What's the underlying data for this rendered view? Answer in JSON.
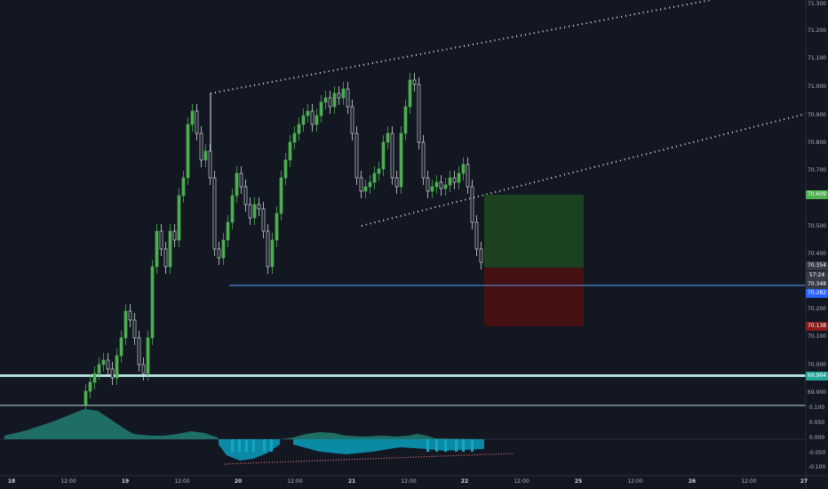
{
  "price_axis": {
    "labels": [
      "71.300",
      "71.200",
      "71.100",
      "71.000",
      "70.900",
      "70.800",
      "70.700",
      "70.500",
      "70.400",
      "70.200",
      "70.100",
      "70.000",
      "69.900"
    ],
    "badges": [
      {
        "text": "70.609",
        "color": "#4caf50"
      },
      {
        "text": "70.354",
        "color": "#363a45"
      },
      {
        "text": "57:24",
        "color": "#363a45"
      },
      {
        "text": "70.348",
        "color": "#363a45"
      },
      {
        "text": "70.282",
        "color": "#2962ff"
      },
      {
        "text": "70.138",
        "color": "#8b1a1a"
      },
      {
        "text": "69.964",
        "color": "#26a69a"
      }
    ]
  },
  "indicator_axis": {
    "labels": [
      "0.100",
      "0.050",
      "0.000",
      "-0.050",
      "-0.100"
    ]
  },
  "time_axis": {
    "labels": [
      {
        "text": "18",
        "bold": true
      },
      {
        "text": "12:00",
        "bold": false
      },
      {
        "text": "19",
        "bold": true
      },
      {
        "text": "12:00",
        "bold": false
      },
      {
        "text": "20",
        "bold": true
      },
      {
        "text": "12:00",
        "bold": false
      },
      {
        "text": "21",
        "bold": true
      },
      {
        "text": "12:00",
        "bold": false
      },
      {
        "text": "22",
        "bold": true
      },
      {
        "text": "12:00",
        "bold": false
      },
      {
        "text": "25",
        "bold": true
      },
      {
        "text": "12:00",
        "bold": false
      },
      {
        "text": "26",
        "bold": true
      },
      {
        "text": "12:00",
        "bold": false
      },
      {
        "text": "27",
        "bold": true
      }
    ]
  },
  "colors": {
    "up": "#4caf50",
    "down": "#d1d4dc",
    "profit": "#1e4620",
    "loss": "#4a1010",
    "support": "#5b9cf6",
    "channel": "#e0e0e0",
    "hline": "#b2dfdb",
    "histogram": "#26a69a"
  }
}
